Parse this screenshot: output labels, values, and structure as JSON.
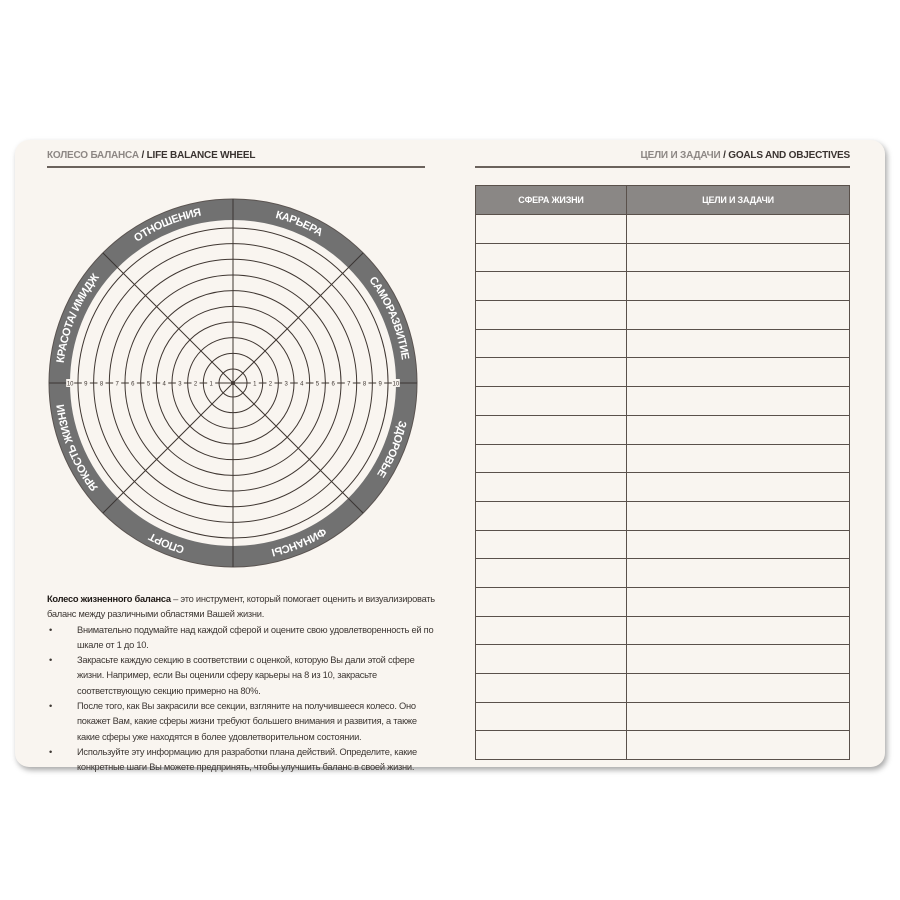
{
  "left_page": {
    "header": {
      "title_ru": "КОЛЕСО БАЛАНСА",
      "separator": " / ",
      "title_en": "LIFE BALANCE WHEEL"
    },
    "wheel": {
      "sectors": [
        "КАРЬЕРА",
        "САМОРАЗВИТИЕ",
        "ЗДОРОВЬЕ",
        "ФИНАНСЫ",
        "СПОРТ",
        "ЯРКОСТЬ ЖИЗНИ",
        "КРАСОТА/ ИМИДЖ",
        "ОТНОШЕНИЯ"
      ],
      "scale": [
        "1",
        "2",
        "3",
        "4",
        "5",
        "6",
        "7",
        "8",
        "9",
        "10"
      ],
      "band_color": "#717171",
      "line_color": "#3f3631"
    },
    "description": {
      "intro_bold": "Колесо жизненного баланса",
      "intro_rest": " – это инструмент, который помогает оценить и визуализировать баланс между различными областями Вашей жизни.",
      "bullet_symbol": "•",
      "bullets": [
        "Внимательно подумайте над каждой сферой и оцените свою удовлетворенность ей по шкале от 1 до 10.",
        "Закрасьте каждую секцию в соответствии с оценкой, которую Вы дали этой сфере жизни. Например, если Вы оценили сферу карьеры на 8 из 10, закрасьте соответствующую секцию примерно на 80%.",
        "После того, как Вы закрасили все секции, взгляните на получившееся колесо. Оно покажет Вам, какие сферы жизни требуют большего внимания и развития, а также какие сферы уже находятся в более удовлетворительном состоянии.",
        "Используйте эту информацию для разработки плана действий. Определите, какие конкретные шаги Вы можете предпринять, чтобы улучшить баланс в своей жизни."
      ]
    }
  },
  "right_page": {
    "header": {
      "title_ru": "ЦЕЛИ И ЗАДАЧИ",
      "separator": " / ",
      "title_en": "GOALS AND OBJECTIVES"
    },
    "table": {
      "columns": [
        "СФЕРА ЖИЗНИ",
        "ЦЕЛИ И ЗАДАЧИ"
      ],
      "header_color": "#8a8785"
    }
  }
}
